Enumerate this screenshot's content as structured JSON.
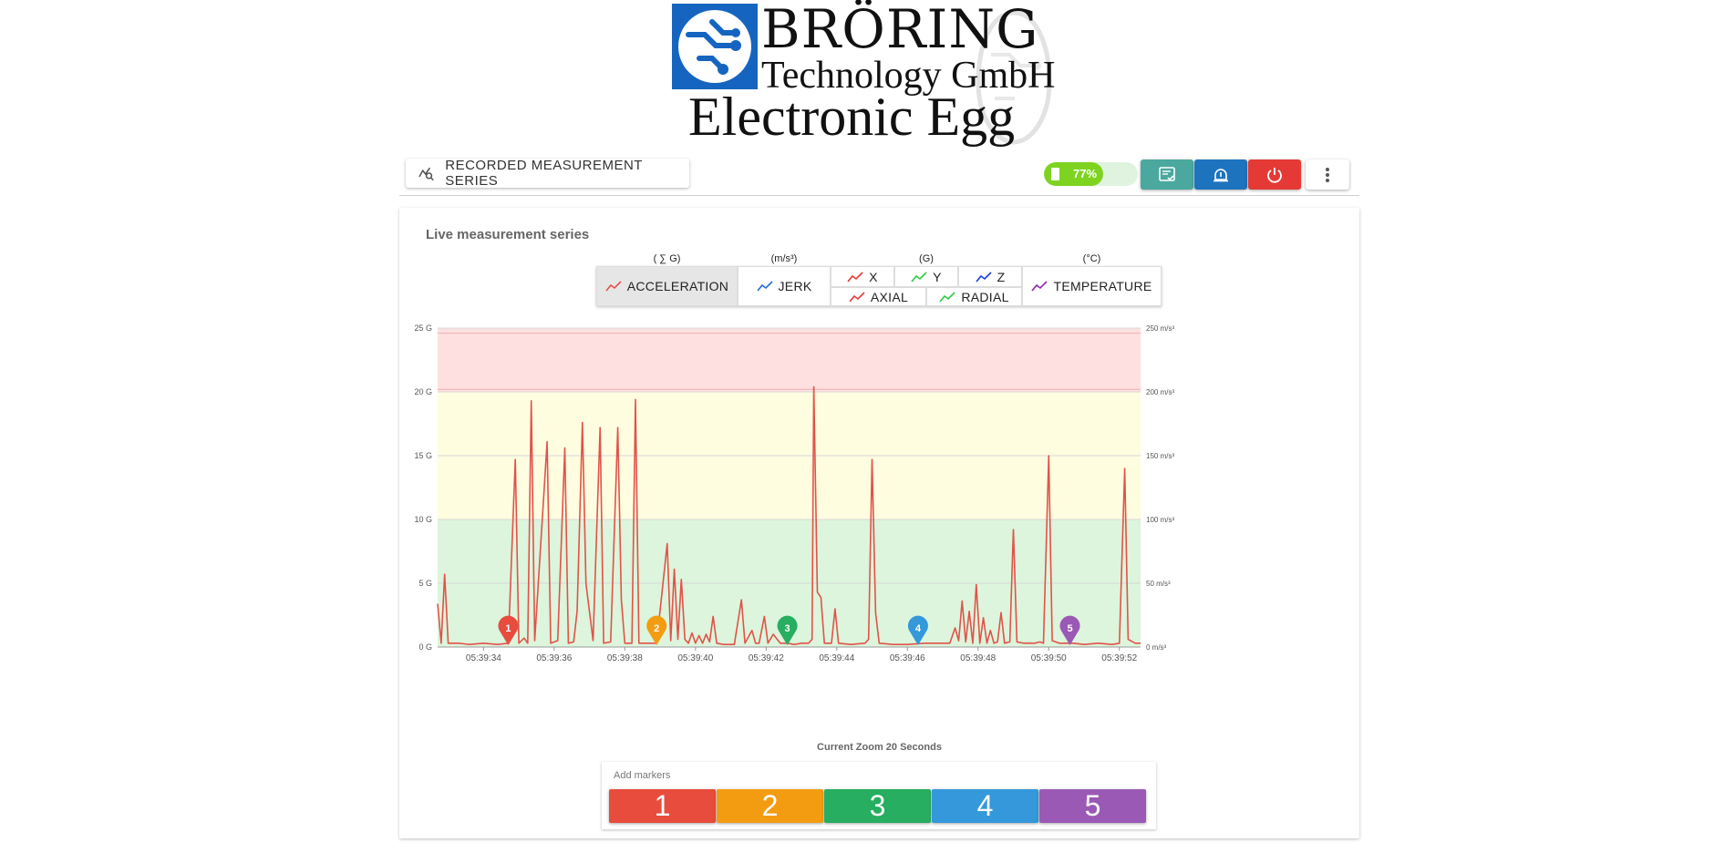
{
  "header": {
    "brand": "BRÖRING",
    "company": "Technology GmbH",
    "product": "Electronic Egg",
    "logo_icon": "circuit-logo"
  },
  "toolbar": {
    "recorded_label": "RECORDED MEASUREMENT SERIES",
    "recorded_icon": "chart-search-icon",
    "battery": {
      "percent": 77,
      "label": "77%",
      "color": "#7ed321"
    },
    "buttons": [
      {
        "name": "report-button",
        "icon": "clipboard-check-icon",
        "color": "#4aa89f"
      },
      {
        "name": "alarm-button",
        "icon": "siren-icon",
        "color": "#1e73be"
      },
      {
        "name": "power-button",
        "icon": "power-icon",
        "color": "#e53935"
      },
      {
        "name": "more-button",
        "icon": "more-vert-icon",
        "color": "#ffffff"
      }
    ]
  },
  "live": {
    "title": "Live measurement series",
    "units": {
      "acceleration": "( ∑ G)",
      "jerk": "(m/s³)",
      "axes": "(G)",
      "temperature": "(°C)"
    },
    "selector": {
      "acceleration": "ACCELERATION",
      "jerk": "JERK",
      "x": "X",
      "y": "Y",
      "z": "Z",
      "axial": "AXIAL",
      "radial": "RADIAL",
      "temperature": "TEMPERATURE",
      "active": "acceleration"
    }
  },
  "chart_data": {
    "type": "line",
    "zoom_label": "Current Zoom 20 Seconds",
    "y_left_ticks": [
      "0 G",
      "5 G",
      "10 G",
      "15 G",
      "20 G",
      "25 G"
    ],
    "y_right_ticks": [
      "0 m/s³",
      "50 m/s³",
      "100 m/s³",
      "150 m/s³",
      "200 m/s³",
      "250 m/s³"
    ],
    "ylim": [
      0,
      25
    ],
    "xlim": [
      32.7,
      52.6
    ],
    "x_ticks": [
      {
        "t": 34,
        "label": "05:39:34"
      },
      {
        "t": 36,
        "label": "05:39:36"
      },
      {
        "t": 38,
        "label": "05:39:38"
      },
      {
        "t": 40,
        "label": "05:39:40"
      },
      {
        "t": 42,
        "label": "05:39:42"
      },
      {
        "t": 44,
        "label": "05:39:44"
      },
      {
        "t": 46,
        "label": "05:39:46"
      },
      {
        "t": 48,
        "label": "05:39:48"
      },
      {
        "t": 50,
        "label": "05:39:50"
      },
      {
        "t": 52,
        "label": "05:39:52"
      }
    ],
    "zones": [
      {
        "from": 0,
        "to": 10,
        "color": "#dcf5dc"
      },
      {
        "from": 10,
        "to": 20,
        "color": "#fefde0"
      },
      {
        "from": 20,
        "to": 25,
        "color": "#ffe0e0"
      }
    ],
    "series": [
      {
        "name": "ACCELERATION",
        "color": "#e2524a",
        "points": [
          [
            32.7,
            3.4
          ],
          [
            32.8,
            0.3
          ],
          [
            32.9,
            5.7
          ],
          [
            33.0,
            0.3
          ],
          [
            33.3,
            0.3
          ],
          [
            33.6,
            0.2
          ],
          [
            34.0,
            0.3
          ],
          [
            34.4,
            0.2
          ],
          [
            34.7,
            0.3
          ],
          [
            34.9,
            14.7
          ],
          [
            35.0,
            0.3
          ],
          [
            35.15,
            0.7
          ],
          [
            35.25,
            0.3
          ],
          [
            35.35,
            19.3
          ],
          [
            35.45,
            0.5
          ],
          [
            35.8,
            16.1
          ],
          [
            35.9,
            0.3
          ],
          [
            36.1,
            0.5
          ],
          [
            36.3,
            15.6
          ],
          [
            36.4,
            0.3
          ],
          [
            36.55,
            0.4
          ],
          [
            36.65,
            2.8
          ],
          [
            36.8,
            17.6
          ],
          [
            36.9,
            5.0
          ],
          [
            37.1,
            0.5
          ],
          [
            37.3,
            17.2
          ],
          [
            37.4,
            0.3
          ],
          [
            37.6,
            0.4
          ],
          [
            37.8,
            17.2
          ],
          [
            37.9,
            3.7
          ],
          [
            38.0,
            0.3
          ],
          [
            38.2,
            0.3
          ],
          [
            38.3,
            19.4
          ],
          [
            38.4,
            0.3
          ],
          [
            38.9,
            0.3
          ],
          [
            39.2,
            8.1
          ],
          [
            39.3,
            0.5
          ],
          [
            39.4,
            6.1
          ],
          [
            39.5,
            0.6
          ],
          [
            39.6,
            5.3
          ],
          [
            39.7,
            0.6
          ],
          [
            39.8,
            0.3
          ],
          [
            39.9,
            1.1
          ],
          [
            40.0,
            0.3
          ],
          [
            40.1,
            0.9
          ],
          [
            40.2,
            0.3
          ],
          [
            40.3,
            1.0
          ],
          [
            40.4,
            0.4
          ],
          [
            40.5,
            2.4
          ],
          [
            40.6,
            0.3
          ],
          [
            40.8,
            0.2
          ],
          [
            41.1,
            0.2
          ],
          [
            41.3,
            3.7
          ],
          [
            41.4,
            0.3
          ],
          [
            41.6,
            1.3
          ],
          [
            41.7,
            0.3
          ],
          [
            41.8,
            0.3
          ],
          [
            41.95,
            2.4
          ],
          [
            42.05,
            0.3
          ],
          [
            42.2,
            1.0
          ],
          [
            42.4,
            0.3
          ],
          [
            42.6,
            0.3
          ],
          [
            42.8,
            0.2
          ],
          [
            43.0,
            0.3
          ],
          [
            43.2,
            0.3
          ],
          [
            43.3,
            0.6
          ],
          [
            43.35,
            20.4
          ],
          [
            43.45,
            4.3
          ],
          [
            43.55,
            3.9
          ],
          [
            43.65,
            0.3
          ],
          [
            43.85,
            0.3
          ],
          [
            43.95,
            3.0
          ],
          [
            44.05,
            0.3
          ],
          [
            44.4,
            0.2
          ],
          [
            44.8,
            0.3
          ],
          [
            44.9,
            0.6
          ],
          [
            45.0,
            14.7
          ],
          [
            45.1,
            2.7
          ],
          [
            45.2,
            0.3
          ],
          [
            45.6,
            0.2
          ],
          [
            46.0,
            0.2
          ],
          [
            46.5,
            0.3
          ],
          [
            47.0,
            0.3
          ],
          [
            47.2,
            0.3
          ],
          [
            47.35,
            1.5
          ],
          [
            47.45,
            0.5
          ],
          [
            47.55,
            3.6
          ],
          [
            47.65,
            0.4
          ],
          [
            47.75,
            2.8
          ],
          [
            47.85,
            0.3
          ],
          [
            47.95,
            4.9
          ],
          [
            48.05,
            0.3
          ],
          [
            48.15,
            2.3
          ],
          [
            48.25,
            0.3
          ],
          [
            48.35,
            1.3
          ],
          [
            48.45,
            0.3
          ],
          [
            48.55,
            0.4
          ],
          [
            48.65,
            2.7
          ],
          [
            48.75,
            0.3
          ],
          [
            48.9,
            0.4
          ],
          [
            49.0,
            9.2
          ],
          [
            49.1,
            0.4
          ],
          [
            49.3,
            0.3
          ],
          [
            49.6,
            0.3
          ],
          [
            49.75,
            0.4
          ],
          [
            49.85,
            0.3
          ],
          [
            50.0,
            15.0
          ],
          [
            50.1,
            0.5
          ],
          [
            50.3,
            0.3
          ],
          [
            50.7,
            0.3
          ],
          [
            51.0,
            0.2
          ],
          [
            51.4,
            0.3
          ],
          [
            51.8,
            0.2
          ],
          [
            52.0,
            0.3
          ],
          [
            52.15,
            14.0
          ],
          [
            52.25,
            0.6
          ],
          [
            52.45,
            0.3
          ],
          [
            52.6,
            0.3
          ]
        ]
      }
    ],
    "markers": [
      {
        "label": "1",
        "t": 34.7,
        "color": "#e74c3c"
      },
      {
        "label": "2",
        "t": 38.9,
        "color": "#f39c12"
      },
      {
        "label": "3",
        "t": 42.6,
        "color": "#27ae60"
      },
      {
        "label": "4",
        "t": 46.3,
        "color": "#3498db"
      },
      {
        "label": "5",
        "t": 50.6,
        "color": "#9b59b6"
      }
    ]
  },
  "markers_panel": {
    "title": "Add markers",
    "buttons": [
      {
        "label": "1",
        "color": "#e74c3c"
      },
      {
        "label": "2",
        "color": "#f39c12"
      },
      {
        "label": "3",
        "color": "#27ae60"
      },
      {
        "label": "4",
        "color": "#3498db"
      },
      {
        "label": "5",
        "color": "#9b59b6"
      }
    ]
  }
}
